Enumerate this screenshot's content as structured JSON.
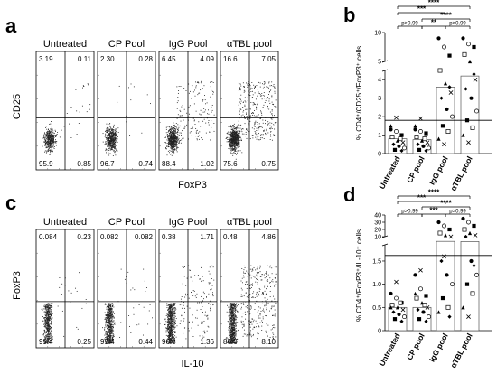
{
  "figure": {
    "panel_a": {
      "label": "a",
      "y_axis_label": "CD25",
      "x_axis_label": "FoxP3",
      "plots": [
        {
          "title": "Untreated",
          "quadrants": {
            "ul": "3.19",
            "ur": "0.11",
            "ll": "95.9",
            "lr": "0.85"
          }
        },
        {
          "title": "CP Pool",
          "quadrants": {
            "ul": "2.30",
            "ur": "0.28",
            "ll": "96.7",
            "lr": "0.74"
          }
        },
        {
          "title": "IgG Pool",
          "quadrants": {
            "ul": "6.45",
            "ur": "4.09",
            "ll": "88.4",
            "lr": "1.02"
          }
        },
        {
          "title": "αTBL pool",
          "quadrants": {
            "ul": "16.6",
            "ur": "7.05",
            "ll": "75.6",
            "lr": "0.75"
          }
        }
      ]
    },
    "panel_c": {
      "label": "c",
      "y_axis_label": "FoxP3",
      "x_axis_label": "IL-10",
      "plots": [
        {
          "title": "Untreated",
          "quadrants": {
            "ul": "0.084",
            "ur": "0.23",
            "ll": "99.4",
            "lr": "0.25"
          }
        },
        {
          "title": "CP Pool",
          "quadrants": {
            "ul": "0.082",
            "ur": "0.082",
            "ll": "99.4",
            "lr": "0.44"
          }
        },
        {
          "title": "IgG Pool",
          "quadrants": {
            "ul": "0.38",
            "ur": "1.71",
            "ll": "96.8",
            "lr": "1.36"
          }
        },
        {
          "title": "αTBL pool",
          "quadrants": {
            "ul": "0.48",
            "ur": "4.86",
            "ll": "86.6",
            "lr": "8.10"
          }
        }
      ]
    },
    "panel_b": {
      "label": "b",
      "y_axis_label": "% CD4⁺/CD25⁺/FoxP3⁺ cells",
      "categories": [
        "Untreated",
        "CP pool",
        "IgG pool",
        "αTBL pool"
      ],
      "y_ticks_lower": [
        "0",
        "1",
        "2",
        "3",
        "4"
      ],
      "y_ticks_upper": [
        "5",
        "10"
      ],
      "significance": [
        "****",
        "***",
        "****",
        "p>0.99",
        "**",
        "p>0.99"
      ]
    },
    "panel_d": {
      "label": "d",
      "y_axis_label": "% CD4⁺/FoxP3⁺/IL-10⁺ cells",
      "categories": [
        "Untreated",
        "CP pool",
        "IgG pool",
        "αTBL pool"
      ],
      "y_ticks_lower": [
        "0",
        "0.5",
        "1.0",
        "1.5"
      ],
      "y_ticks_upper": [
        "10",
        "20",
        "30",
        "40"
      ],
      "significance": [
        "****",
        "***",
        "****",
        "p>0.99",
        "***",
        "p>0.99"
      ]
    }
  },
  "chart_data": [
    {
      "type": "bar",
      "panel": "b",
      "categories": [
        "Untreated",
        "CP pool",
        "IgG pool",
        "αTBL pool"
      ],
      "values": [
        0.8,
        0.75,
        3.6,
        4.2
      ],
      "threshold": 1.8,
      "ylabel": "% CD4⁺/CD25⁺/FoxP3⁺ cells",
      "ylim": [
        0,
        10
      ],
      "axis_break": [
        4.5,
        5
      ],
      "points": [
        [
          1.3,
          1.2,
          1.0,
          0.9,
          0.7,
          0.6,
          0.5,
          0.4,
          0.3,
          0.2,
          0.8,
          1.5,
          1.95,
          0.15
        ],
        [
          1.3,
          1.2,
          1.1,
          0.9,
          0.7,
          0.6,
          0.5,
          0.4,
          0.3,
          0.2,
          0.8,
          1.5,
          1.9,
          0.15
        ],
        [
          9.0,
          7.5,
          6.0,
          4.5,
          3.8,
          3.3,
          3.0,
          2.4,
          2.0,
          1.5,
          1.2,
          0.8,
          0.5,
          3.6
        ],
        [
          9.0,
          8.0,
          7.5,
          6.2,
          5.0,
          4.0,
          3.5,
          3.0,
          2.3,
          1.8,
          1.4,
          1.0,
          0.6,
          4.3
        ]
      ]
    },
    {
      "type": "bar",
      "panel": "d",
      "categories": [
        "Untreated",
        "CP pool",
        "IgG pool",
        "αTBL pool"
      ],
      "values": [
        0.5,
        0.5,
        3.5,
        3.3
      ],
      "threshold": 1.62,
      "ylabel": "% CD4⁺/FoxP3⁺/IL-10⁺ cells",
      "ylim": [
        0,
        40
      ],
      "axis_break": [
        1.85,
        10
      ],
      "points": [
        [
          0.8,
          0.7,
          0.6,
          0.55,
          0.5,
          0.45,
          0.4,
          0.35,
          0.3,
          0.25,
          0.6,
          0.5,
          1.05,
          0.2
        ],
        [
          1.2,
          0.9,
          0.75,
          0.7,
          0.6,
          0.5,
          0.45,
          0.4,
          0.3,
          0.25,
          0.55,
          0.8,
          1.3,
          0.2
        ],
        [
          30,
          25,
          20,
          15,
          12,
          10,
          1.5,
          1.2,
          1.0,
          0.7,
          0.5,
          0.4,
          1.6,
          0.3
        ],
        [
          35,
          30,
          25,
          20,
          15,
          12,
          10,
          1.5,
          1.2,
          1.0,
          0.8,
          0.5,
          0.3,
          1.4
        ]
      ]
    }
  ]
}
